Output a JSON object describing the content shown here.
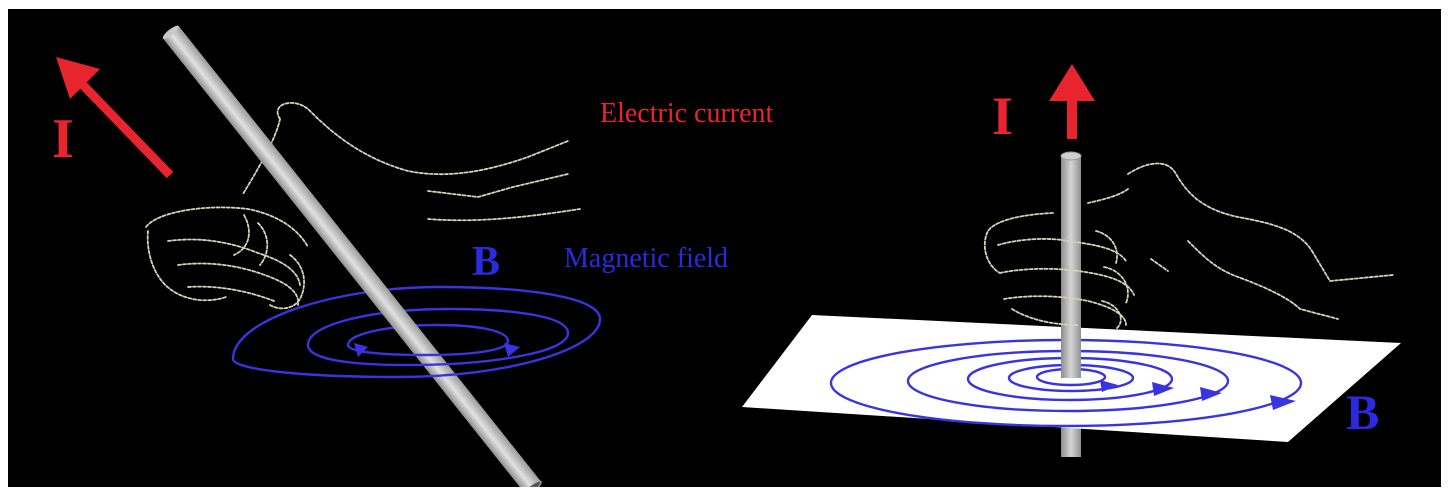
{
  "labels": {
    "current_symbol_left": "I",
    "current_text": "Electric current",
    "current_symbol_right": "I",
    "field_symbol_left": "B",
    "field_text": "Magnetic field",
    "field_symbol_right": "B"
  },
  "colors": {
    "background": "#000000",
    "current": "#e8242f",
    "field": "#2a2ae0",
    "wire": "#c8c8c8",
    "hand_outline": "#d8d2b6",
    "paper": "#ffffff"
  },
  "icons": {
    "left_arrow": "red-arrow-up-left-icon",
    "right_arrow": "red-arrow-up-icon"
  }
}
